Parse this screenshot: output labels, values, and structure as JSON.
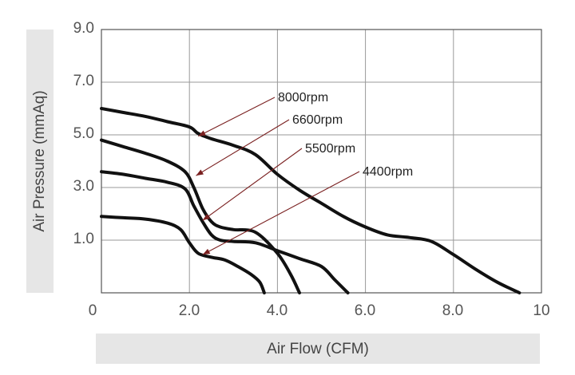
{
  "chart_data": {
    "type": "line",
    "title": "",
    "xlabel": "Air Flow (CFM)",
    "ylabel": "Air Pressure (mmAq)",
    "xlim": [
      0,
      10
    ],
    "ylim": [
      -1,
      9
    ],
    "x_ticks": [
      "0",
      "2.0",
      "4.0",
      "6.0",
      "8.0",
      "10"
    ],
    "x_tick_values": [
      0,
      2,
      4,
      6,
      8,
      10
    ],
    "y_ticks": [
      "9.0",
      "7.0",
      "5.0",
      "3.0",
      "1.0"
    ],
    "y_tick_values": [
      9,
      7,
      5,
      3,
      1
    ],
    "grid": true,
    "colors": {
      "curve": "#111111",
      "grid": "#999999",
      "frame": "#555555",
      "label_panel": "#e6e6e6",
      "arrow": "#7a2020"
    },
    "series": [
      {
        "name": "8000rpm",
        "x": [
          0,
          0.5,
          1.0,
          1.5,
          2.0,
          2.2,
          2.5,
          3.0,
          3.5,
          4.0,
          4.5,
          5.0,
          5.5,
          6.0,
          6.5,
          7.0,
          7.5,
          8.0,
          8.5,
          9.0,
          9.5
        ],
        "y": [
          6.0,
          5.85,
          5.7,
          5.5,
          5.3,
          5.05,
          4.85,
          4.6,
          4.25,
          3.5,
          2.9,
          2.4,
          1.9,
          1.5,
          1.2,
          1.1,
          0.95,
          0.45,
          -0.1,
          -0.6,
          -1.0
        ],
        "arrow_to": [
          2.2,
          4.95
        ]
      },
      {
        "name": "6600rpm",
        "x": [
          0,
          0.5,
          1.0,
          1.5,
          1.9,
          2.1,
          2.3,
          2.5,
          2.7,
          3.0,
          3.5,
          4.0,
          4.3,
          4.5
        ],
        "y": [
          4.8,
          4.55,
          4.3,
          4.0,
          3.6,
          3.0,
          2.2,
          1.7,
          1.5,
          1.4,
          1.3,
          0.5,
          -0.3,
          -1.0
        ],
        "arrow_to": [
          2.15,
          3.45
        ]
      },
      {
        "name": "5500rpm",
        "x": [
          0,
          0.5,
          1.0,
          1.5,
          1.9,
          2.1,
          2.3,
          2.5,
          2.7,
          3.0,
          3.5,
          4.0,
          4.5,
          5.0,
          5.3,
          5.6
        ],
        "y": [
          3.6,
          3.5,
          3.35,
          3.2,
          2.95,
          2.3,
          1.7,
          1.2,
          1.0,
          0.95,
          0.9,
          0.6,
          0.3,
          0.0,
          -0.5,
          -1.0
        ],
        "arrow_to": [
          2.3,
          1.75
        ]
      },
      {
        "name": "4400rpm",
        "x": [
          0,
          0.5,
          1.0,
          1.5,
          1.8,
          2.0,
          2.2,
          2.5,
          2.8,
          3.1,
          3.4,
          3.6,
          3.7
        ],
        "y": [
          1.9,
          1.85,
          1.8,
          1.65,
          1.4,
          0.9,
          0.5,
          0.35,
          0.25,
          0.0,
          -0.3,
          -0.6,
          -1.0
        ],
        "arrow_to": [
          2.3,
          0.45
        ]
      }
    ]
  }
}
